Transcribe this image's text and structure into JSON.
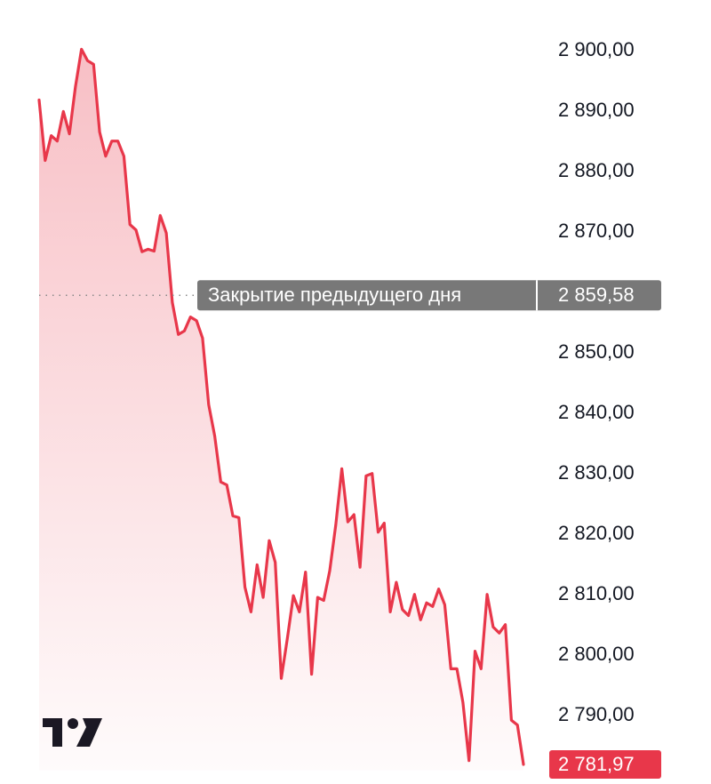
{
  "chart_data": {
    "type": "line",
    "color": "#e8374a",
    "ylim": [
      2781,
      2908
    ],
    "yticks": [
      {
        "value": 2900,
        "label": "2 900,00"
      },
      {
        "value": 2890,
        "label": "2 890,00"
      },
      {
        "value": 2880,
        "label": "2 880,00"
      },
      {
        "value": 2870,
        "label": "2 870,00"
      },
      {
        "value": 2850,
        "label": "2 850,00"
      },
      {
        "value": 2840,
        "label": "2 840,00"
      },
      {
        "value": 2830,
        "label": "2 830,00"
      },
      {
        "value": 2820,
        "label": "2 820,00"
      },
      {
        "value": 2810,
        "label": "2 810,00"
      },
      {
        "value": 2800,
        "label": "2 800,00"
      },
      {
        "value": 2790,
        "label": "2 790,00"
      }
    ],
    "values": [
      2891.9,
      2881.9,
      2886.0,
      2885.1,
      2890.0,
      2886.3,
      2894.1,
      2900.3,
      2898.4,
      2897.8,
      2886.6,
      2882.6,
      2885.1,
      2885.1,
      2882.6,
      2871.3,
      2870.4,
      2866.8,
      2867.2,
      2866.9,
      2872.8,
      2869.9,
      2858.4,
      2853.1,
      2853.7,
      2856.0,
      2855.4,
      2852.5,
      2841.5,
      2836.3,
      2828.7,
      2828.2,
      2823.1,
      2822.8,
      2811.3,
      2807.2,
      2815.0,
      2809.6,
      2819.0,
      2815.4,
      2796.2,
      2802.8,
      2809.9,
      2807.2,
      2813.8,
      2796.9,
      2809.6,
      2809.1,
      2814.0,
      2821.6,
      2830.9,
      2822.1,
      2823.3,
      2814.6,
      2829.7,
      2830.1,
      2820.4,
      2821.9,
      2807.2,
      2812.1,
      2807.6,
      2806.6,
      2810.1,
      2805.9,
      2808.7,
      2808.1,
      2811.0,
      2808.4,
      2797.8,
      2797.8,
      2792.2,
      2782.6,
      2800.7,
      2797.8,
      2810.1,
      2804.7,
      2803.7,
      2805.1,
      2789.3,
      2788.5,
      2781.97
    ],
    "last_label": "2 781,97",
    "reference_line": {
      "value": 2859.58,
      "value_label": "2 859,58",
      "label": "Закрытие предыдущего дня",
      "color": "#787878"
    }
  }
}
